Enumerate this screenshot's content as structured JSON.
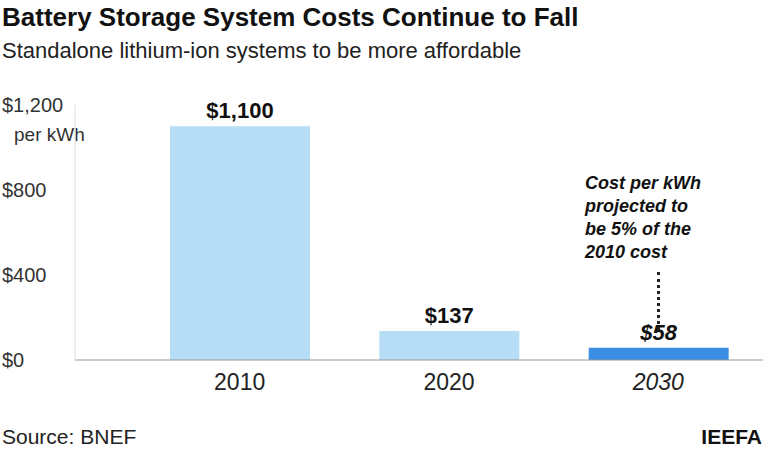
{
  "chart_data": {
    "type": "bar",
    "title": "Battery Storage System Costs Continue to Fall",
    "subtitle": "Standalone lithium-ion systems to be more affordable",
    "categories": [
      "2010",
      "2020",
      "2030"
    ],
    "values": [
      1100,
      137,
      58
    ],
    "value_labels": [
      "$1,100",
      "$137",
      "$58"
    ],
    "colors": [
      "#b5ddf6",
      "#b5ddf6",
      "#3a8ee6"
    ],
    "ylim": [
      0,
      1200
    ],
    "yticks": [
      {
        "value": 0,
        "label": "$0"
      },
      {
        "value": 400,
        "label": "$400"
      },
      {
        "value": 800,
        "label": "$800"
      },
      {
        "value": 1200,
        "label": "$1,200"
      }
    ],
    "y_label": "per kWh",
    "annotation": [
      "Cost per kWh",
      "projected to",
      "be 5% of the",
      "2010 cost"
    ],
    "source": "Source: BNEF",
    "credit": "IEEFA",
    "data_labels": true,
    "grid": false
  }
}
